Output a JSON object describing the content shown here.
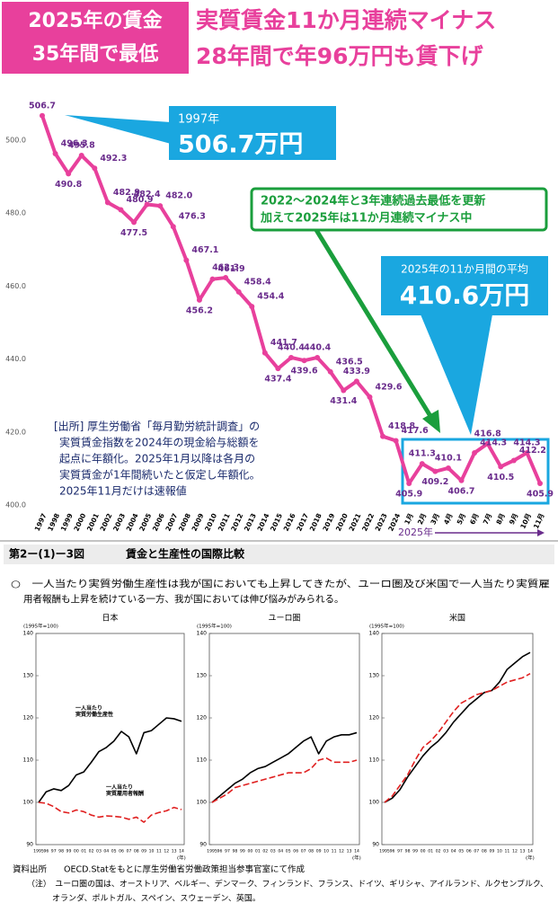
{
  "header": {
    "badge": [
      "2025年の賃金",
      "35年間で最低"
    ],
    "title": [
      "実質賃金11か月連続マイナス",
      "28年間で年96万円も賃下げ"
    ]
  },
  "callouts": {
    "peak": [
      "1997年",
      "506.7万円"
    ],
    "record": [
      "2022〜2024年と3年連続過去最低を更新",
      "加えて2025年は11か月連続マイナス中"
    ],
    "average": [
      "2025年の11か月間の平均",
      "410.6万円"
    ],
    "year_marker": "2025年"
  },
  "source_note": [
    "[出所] 厚生労働省「毎月勤労統計調査」の",
    "実質賃金指数を2024年の現金給与総額を",
    "起点に年額化。2025年1月以降は各月の",
    "実質賃金が1年間続いたと仮定し年額化。",
    "2025年11月だけは速報値"
  ],
  "section": {
    "figure_no": "第2ー(1)ー3図",
    "figure_title": "賃金と生産性の国際比較",
    "description": [
      "○　一人当たり実質労働生産性は我が国においても上昇してきたが、ユーロ圏及び米国で一人当たり実質雇",
      "用者報酬も上昇を続けている一方、我が国においては伸び悩みがみられる。"
    ],
    "source": [
      "資料出所　　OECD.Statをもとに厚生労働省労働政策担当参事官室にて作成",
      "（注）　ユーロ圏の国は、オーストリア、ベルギー、デンマーク、フィンランド、フランス、ドイツ、ギリシャ、アイルランド、ルクセンブルク、",
      "オランダ、ポルトガル、スペイン、スウェーデン、英国。"
    ]
  },
  "chart_data": [
    {
      "type": "line",
      "categories": [
        "1997",
        "1998",
        "1999",
        "2000",
        "2001",
        "2002",
        "2003",
        "2004",
        "2005",
        "2006",
        "2007",
        "2008",
        "2009",
        "2010",
        "2011",
        "2012",
        "2013",
        "2014",
        "2015",
        "2016",
        "2017",
        "2018",
        "2019",
        "2020",
        "2021",
        "2022",
        "2023",
        "2024",
        "1月",
        "2月",
        "3月",
        "4月",
        "5月",
        "6月",
        "7月",
        "8月",
        "9月",
        "10月",
        "11月"
      ],
      "series": [
        {
          "color": "#e8409c",
          "values": [
            506.7,
            496.3,
            490.8,
            495.8,
            492.3,
            482.9,
            480.9,
            477.5,
            482.4,
            482.0,
            476.3,
            467.1,
            456.2,
            461.9,
            462.3,
            458.4,
            454.4,
            441.7,
            437.4,
            440.4,
            439.6,
            440.4,
            436.5,
            431.4,
            433.9,
            429.6,
            418.8,
            417.6,
            405.9,
            411.3,
            409.2,
            410.1,
            406.7,
            414.3,
            416.8,
            410.5,
            412.2,
            414.3,
            405.9
          ],
          "value_labels": [
            "506.7",
            "496.3",
            "490.8",
            "495.8",
            "492.3",
            "482.9",
            "480.9",
            "477.5",
            "482.4",
            "482.0",
            "476.3",
            "467.1",
            "456.2",
            "461.9",
            "462.3",
            "458.4",
            "454.4",
            "441.7",
            "437.4",
            "440.4",
            "439.6",
            "440.4",
            "436.5",
            "431.4",
            "433.9",
            "429.6",
            "418.8",
            "417.6",
            "405.9",
            "411.3",
            "409.2",
            "410.1",
            "406.7",
            "414.3",
            "416.8",
            "410.5",
            "412.2",
            "414.3",
            "405.9"
          ]
        }
      ],
      "ylim": [
        400,
        510
      ],
      "yticks": [
        {
          "value": 400,
          "label": "400.0"
        },
        {
          "value": 420,
          "label": "420.0"
        },
        {
          "value": 440,
          "label": "440.0"
        },
        {
          "value": 460,
          "label": "460.0"
        },
        {
          "value": 480,
          "label": "480.0"
        },
        {
          "value": 500,
          "label": "500.0"
        }
      ],
      "grid": false
    },
    {
      "type": "line",
      "title": "日本",
      "ylabel": "(1995年=100)",
      "xlabel": "(年)",
      "categories": [
        "1995",
        "96",
        "97",
        "98",
        "99",
        "00",
        "01",
        "02",
        "03",
        "04",
        "05",
        "06",
        "07",
        "08",
        "09",
        "10",
        "11",
        "12",
        "13",
        "14"
      ],
      "series": [
        {
          "name": "一人当たり\n実質労働生産性",
          "color": "#000000",
          "dash": false,
          "values": [
            100,
            102.5,
            103.2,
            102.8,
            104,
            106.5,
            107.2,
            109.5,
            112,
            113,
            114.5,
            116.8,
            115.5,
            111.5,
            116.5,
            117,
            118.5,
            120,
            119.8,
            119.2
          ]
        },
        {
          "name": "一人当たり\n実質雇用者報酬",
          "color": "#e02020",
          "dash": true,
          "values": [
            100,
            99.8,
            99,
            97.8,
            97.5,
            98.2,
            97.8,
            97,
            96.5,
            96.8,
            96.7,
            96.5,
            96,
            96.5,
            95.3,
            97,
            97.6,
            98,
            98.8,
            98.3
          ]
        }
      ],
      "ylim": [
        90,
        140
      ],
      "yticks": [
        90,
        100,
        110,
        120,
        130,
        140
      ]
    },
    {
      "type": "line",
      "title": "ユーロ圏",
      "ylabel": "(1995年=100)",
      "xlabel": "(年)",
      "categories": [
        "1995",
        "96",
        "97",
        "98",
        "99",
        "00",
        "01",
        "02",
        "03",
        "04",
        "05",
        "06",
        "07",
        "08",
        "09",
        "10",
        "11",
        "12",
        "13",
        "14"
      ],
      "series": [
        {
          "color": "#000000",
          "dash": false,
          "values": [
            100,
            101.5,
            103,
            104.5,
            105.5,
            107,
            108,
            108.5,
            109.5,
            110.5,
            111.5,
            113,
            114.5,
            115.5,
            111.5,
            114.5,
            115.5,
            116,
            116,
            116.5
          ]
        },
        {
          "color": "#e02020",
          "dash": true,
          "values": [
            100,
            101,
            102,
            103.5,
            104,
            104.5,
            105,
            105.5,
            106,
            106.5,
            107,
            107,
            107,
            108,
            110,
            110.5,
            109.5,
            109.5,
            109.5,
            110
          ]
        }
      ],
      "ylim": [
        90,
        140
      ],
      "yticks": [
        90,
        100,
        110,
        120,
        130,
        140
      ]
    },
    {
      "type": "line",
      "title": "米国",
      "ylabel": "(1995年=100)",
      "xlabel": "(年)",
      "categories": [
        "1995",
        "96",
        "97",
        "98",
        "99",
        "00",
        "01",
        "02",
        "03",
        "04",
        "05",
        "06",
        "07",
        "08",
        "09",
        "10",
        "11",
        "12",
        "13",
        "14"
      ],
      "series": [
        {
          "color": "#000000",
          "dash": false,
          "values": [
            100,
            101,
            103,
            106,
            108.5,
            111,
            113,
            114.5,
            116.5,
            119,
            121,
            123,
            124.5,
            126,
            126.5,
            128.5,
            131.5,
            133,
            134.5,
            135.5
          ]
        },
        {
          "color": "#e02020",
          "dash": true,
          "values": [
            100,
            101.5,
            104,
            106.5,
            110,
            113,
            114.5,
            116.5,
            119,
            121.5,
            123.5,
            124.5,
            125.5,
            126,
            126.5,
            127.5,
            128.5,
            129,
            129.5,
            130.5
          ]
        }
      ],
      "ylim": [
        90,
        140
      ],
      "yticks": [
        90,
        100,
        110,
        120,
        130,
        140
      ]
    }
  ]
}
